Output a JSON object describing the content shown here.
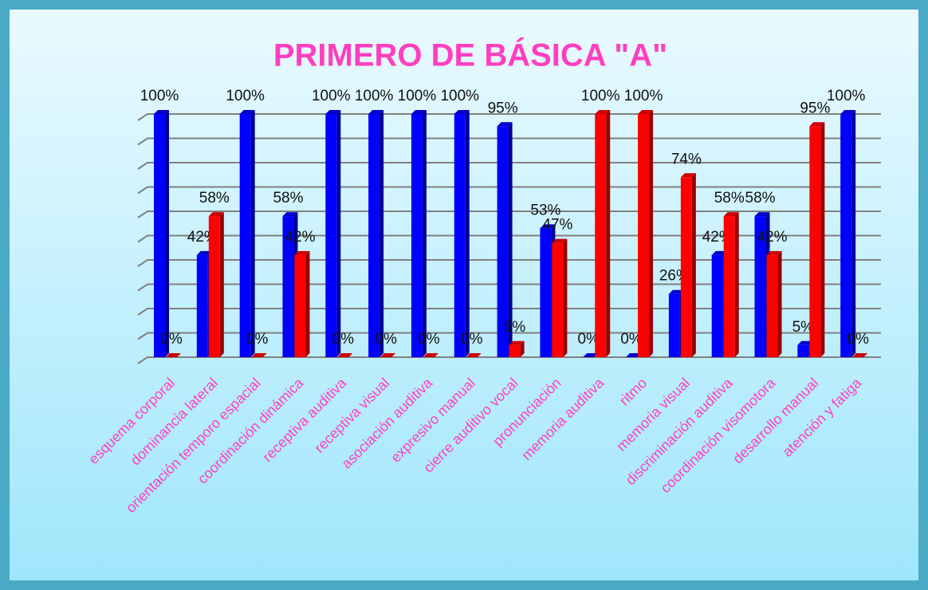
{
  "chart_data": {
    "type": "bar3d",
    "title": "PRIMERO DE BÁSICA \"A\"",
    "categories": [
      "esquema corporal",
      "dominancia lateral",
      "orientación temporo espacial",
      "coordinación dinámica",
      "receptiva auditiva",
      "receptiva visual",
      "asociación auditiva",
      "expresivo manual",
      "cierre auditivo vocal",
      "pronunciación",
      "memoria auditiva",
      "ritmo",
      "memoria visual",
      "discriminación auditiva",
      "coordinación visomotora",
      "desarrollo manual",
      "atención y fatiga"
    ],
    "series": [
      {
        "color": "#0000ff",
        "values": [
          100,
          42,
          100,
          58,
          100,
          100,
          100,
          100,
          95,
          53,
          0,
          0,
          26,
          42,
          58,
          5,
          100
        ],
        "value_labels": [
          "100%",
          "42%",
          "100%",
          "58%",
          "100%",
          "100%",
          "100%",
          "100%",
          "95%",
          "53%",
          "0%",
          "0%",
          "26%",
          "42%",
          "58%",
          "5%",
          "100%"
        ]
      },
      {
        "color": "#ff0000",
        "values": [
          0,
          58,
          0,
          42,
          0,
          0,
          0,
          0,
          5,
          47,
          100,
          100,
          74,
          58,
          42,
          95,
          0
        ],
        "value_labels": [
          "0%",
          "58%",
          "0%",
          "42%",
          "0%",
          "0%",
          "0%",
          "0%",
          "5%",
          "47%",
          "100%",
          "100%",
          "74%",
          "58%",
          "42%",
          "95%",
          "0%"
        ]
      }
    ],
    "ylim": [
      0,
      100
    ],
    "yticks": [
      0,
      10,
      20,
      30,
      40,
      50,
      60,
      70,
      80,
      90,
      100
    ],
    "grid": true
  }
}
